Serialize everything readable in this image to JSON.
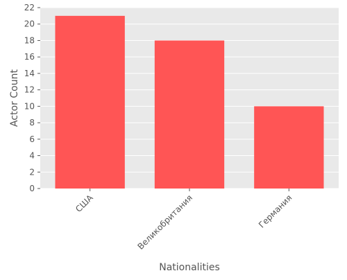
{
  "chart_data": {
    "type": "bar",
    "categories": [
      "США",
      "Великобритания",
      "Германия"
    ],
    "values": [
      21,
      18,
      10
    ],
    "xlabel": "Nationalities",
    "ylabel": "Actor Count",
    "ylim": [
      0,
      22
    ],
    "yticks": [
      0,
      2,
      4,
      6,
      8,
      10,
      12,
      14,
      16,
      18,
      20,
      22
    ],
    "grid": true,
    "bar_color": "#ff5555",
    "plot_background": "#e9e9e9",
    "grid_color": "#ffffff",
    "text_color": "#555555"
  }
}
